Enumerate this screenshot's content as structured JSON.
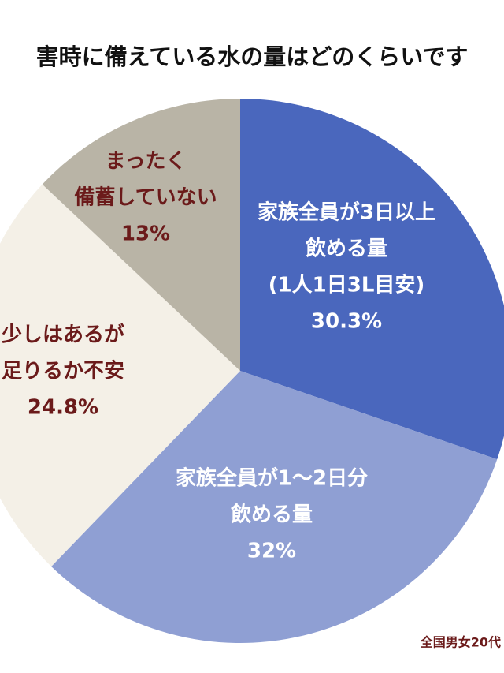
{
  "chart_data": {
    "type": "pie",
    "title": "害時に備えている水の量はどのくらいです",
    "source": "全国男女20代",
    "categories": [
      [
        "家族全員が3日以上",
        "飲める量",
        "(1人1日3L目安)"
      ],
      [
        "家族全員が1〜2日分",
        "飲める量"
      ],
      [
        "少しはあるが",
        "足りるか不安"
      ],
      [
        "まったく",
        "備蓄していない"
      ]
    ],
    "values": [
      30.3,
      32,
      24.8,
      13
    ],
    "value_labels": [
      "30.3%",
      "32%",
      "24.8%",
      "13%"
    ],
    "colors": [
      "#4a67bd",
      "#8f9fd3",
      "#f4f0e7",
      "#b9b4a6"
    ],
    "label_colors": [
      "#ffffff",
      "#ffffff",
      "#6b1a1a",
      "#6b1a1a"
    ]
  }
}
